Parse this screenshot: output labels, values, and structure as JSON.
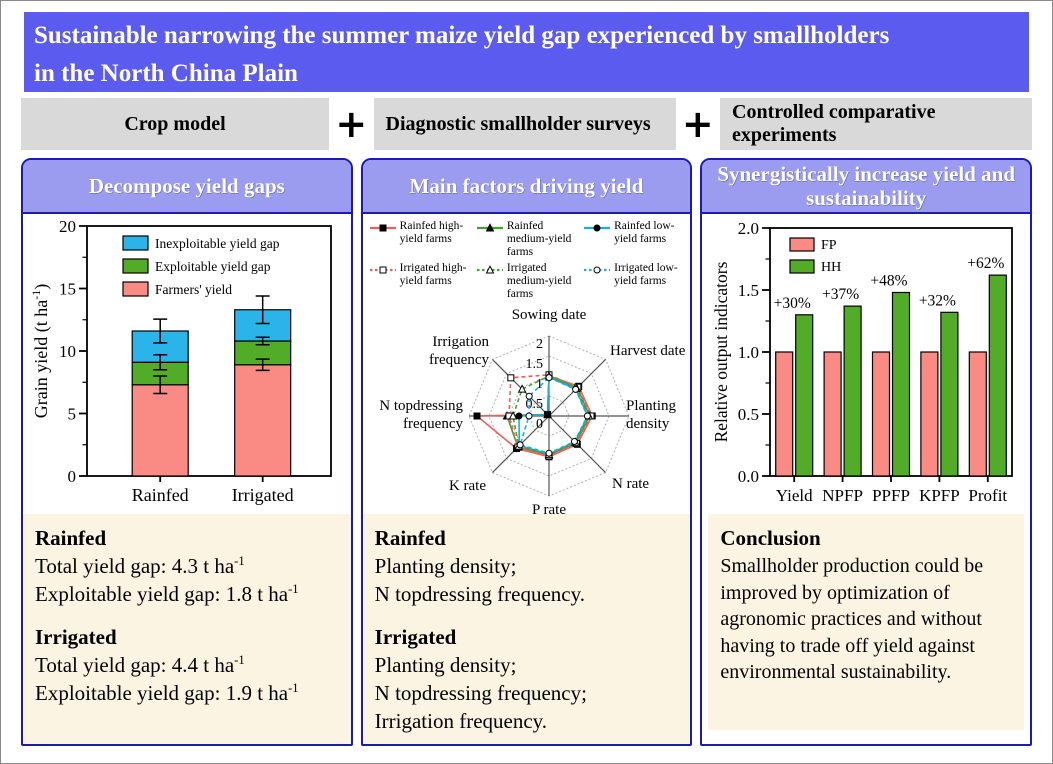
{
  "banner": {
    "lines": [
      "Sustainable narrowing the summer maize yield gap experienced by smallholders",
      "in the North China Plain"
    ]
  },
  "methods": {
    "plus": "+",
    "items": [
      "Crop model",
      "Diagnostic smallholder surveys",
      "Controlled comparative experiments"
    ]
  },
  "panels": [
    {
      "header": "Decompose yield gaps",
      "info": {
        "sections": [
          {
            "heading": "Rainfed",
            "lines": [
              {
                "pre": "Total yield gap: 4.3 t ha",
                "sup": "-1"
              },
              {
                "pre": "Exploitable yield gap: 1.8 t ha",
                "sup": "-1"
              }
            ]
          },
          {
            "heading": "Irrigated",
            "lines": [
              {
                "pre": "Total yield gap: 4.4 t ha",
                "sup": "-1"
              },
              {
                "pre": "Exploitable yield gap: 1.9 t ha",
                "sup": "-1"
              }
            ]
          }
        ]
      }
    },
    {
      "header": "Main factors driving yield",
      "info": {
        "sections": [
          {
            "heading": "Rainfed",
            "lines": [
              "Planting density;",
              "N topdressing frequency."
            ]
          },
          {
            "heading": "Irrigated",
            "lines": [
              "Planting density;",
              "N topdressing frequency;",
              "Irrigation frequency."
            ]
          }
        ]
      }
    },
    {
      "header": "Synergistically increase yield and sustainability",
      "info": {
        "heading": "Conclusion",
        "text": "Smallholder production could be improved by optimization of agronomic practices and without having to trade off yield against environmental sustainability."
      }
    }
  ],
  "chart_data": [
    {
      "type": "bar",
      "subtype": "stacked",
      "ylabel": "Grain yield (t ha-1)",
      "ylabel_parts": [
        "Grain yield (t ha",
        "-1",
        ")"
      ],
      "ylim": [
        0,
        20
      ],
      "ytick_major": 5,
      "ytick_minor": 2.5,
      "grid": false,
      "legend_position": "top-left-inside",
      "categories": [
        "Rainfed",
        "Irrigated"
      ],
      "series": [
        {
          "name": "Farmers' yield",
          "color": "#f98b84",
          "values": [
            7.3,
            8.9
          ],
          "errors": [
            0.7,
            0.45
          ]
        },
        {
          "name": "Exploitable yield gap",
          "color": "#53ac28",
          "values": [
            1.8,
            1.9
          ],
          "errors": [
            0.6,
            0.3
          ]
        },
        {
          "name": "Inexploitable yield gap",
          "color": "#2ab4e9",
          "values": [
            2.5,
            2.5
          ],
          "errors": [
            0.95,
            1.1
          ]
        }
      ],
      "stack_totals": [
        11.6,
        13.3
      ],
      "legend_order": [
        "Inexploitable yield gap",
        "Exploitable yield gap",
        "Farmers' yield"
      ]
    },
    {
      "type": "radar",
      "axes": [
        "Sowing date",
        "Harvest date",
        "Planting density",
        "N rate",
        "P rate",
        "K rate",
        "N topdressing frequency",
        "Irrigation frequency"
      ],
      "rlim": [
        0,
        2
      ],
      "rticks": [
        0,
        0.5,
        1,
        1.5,
        2
      ],
      "grid": "dotted-octagon",
      "series": [
        {
          "name": "Rainfed high-yield farms",
          "color": "#f25c5c",
          "dash": false,
          "marker": "square",
          "filled": true,
          "values": [
            1.0,
            1.05,
            1.08,
            1.0,
            1.02,
            1.15,
            1.8,
            0.05
          ]
        },
        {
          "name": "Rainfed medium-yield farms",
          "color": "#3fa32c",
          "dash": false,
          "marker": "triangle",
          "filled": true,
          "values": [
            1.0,
            1.0,
            1.02,
            0.95,
            0.98,
            1.1,
            1.05,
            0.05
          ]
        },
        {
          "name": "Rainfed low-yield farms",
          "color": "#17aee8",
          "dash": false,
          "marker": "circle",
          "filled": true,
          "values": [
            0.97,
            0.95,
            0.97,
            0.92,
            0.95,
            1.05,
            0.75,
            0.05
          ]
        },
        {
          "name": "Irrigated high-yield farms",
          "color": "#f25c5c",
          "dash": true,
          "marker": "square",
          "filled": false,
          "values": [
            1.03,
            1.02,
            1.05,
            0.97,
            1.0,
            1.1,
            1.0,
            1.35
          ]
        },
        {
          "name": "Irrigated medium-yield farms",
          "color": "#3fa32c",
          "dash": true,
          "marker": "triangle",
          "filled": false,
          "values": [
            1.0,
            0.98,
            1.0,
            0.93,
            0.96,
            1.07,
            0.9,
            0.95
          ]
        },
        {
          "name": "Irrigated low-yield farms",
          "color": "#17aee8",
          "dash": true,
          "marker": "circle",
          "filled": false,
          "values": [
            0.96,
            0.94,
            0.96,
            0.9,
            0.93,
            1.02,
            0.5,
            0.7
          ]
        }
      ]
    },
    {
      "type": "bar",
      "subtype": "grouped",
      "ylabel": "Relative output indicators",
      "ylim": [
        0,
        2
      ],
      "ytick_major": 0.5,
      "ytick_minor": 0.25,
      "grid": false,
      "legend_position": "top-left-inside",
      "categories": [
        "Yield",
        "NPFP",
        "PPFP",
        "KPFP",
        "Profit"
      ],
      "series": [
        {
          "name": "FP",
          "color": "#f98b84",
          "values": [
            1.0,
            1.0,
            1.0,
            1.0,
            1.0
          ]
        },
        {
          "name": "HH",
          "color": "#53ac28",
          "values": [
            1.3,
            1.37,
            1.48,
            1.32,
            1.62
          ]
        }
      ],
      "bar_labels": [
        "+30%",
        "+37%",
        "+48%",
        "+32%",
        "+62%"
      ]
    }
  ],
  "colors": {
    "banner_bg": "#5b5bf0",
    "method_box_bg": "#d9d9d9",
    "panel_border": "#1b1bb4",
    "panel_header_bg": "#9b9bf0",
    "info_box_bg": "#fcf4e2",
    "farmers_yield": "#f98b84",
    "exploitable_gap": "#53ac28",
    "inexploitable_gap": "#2ab4e9"
  }
}
